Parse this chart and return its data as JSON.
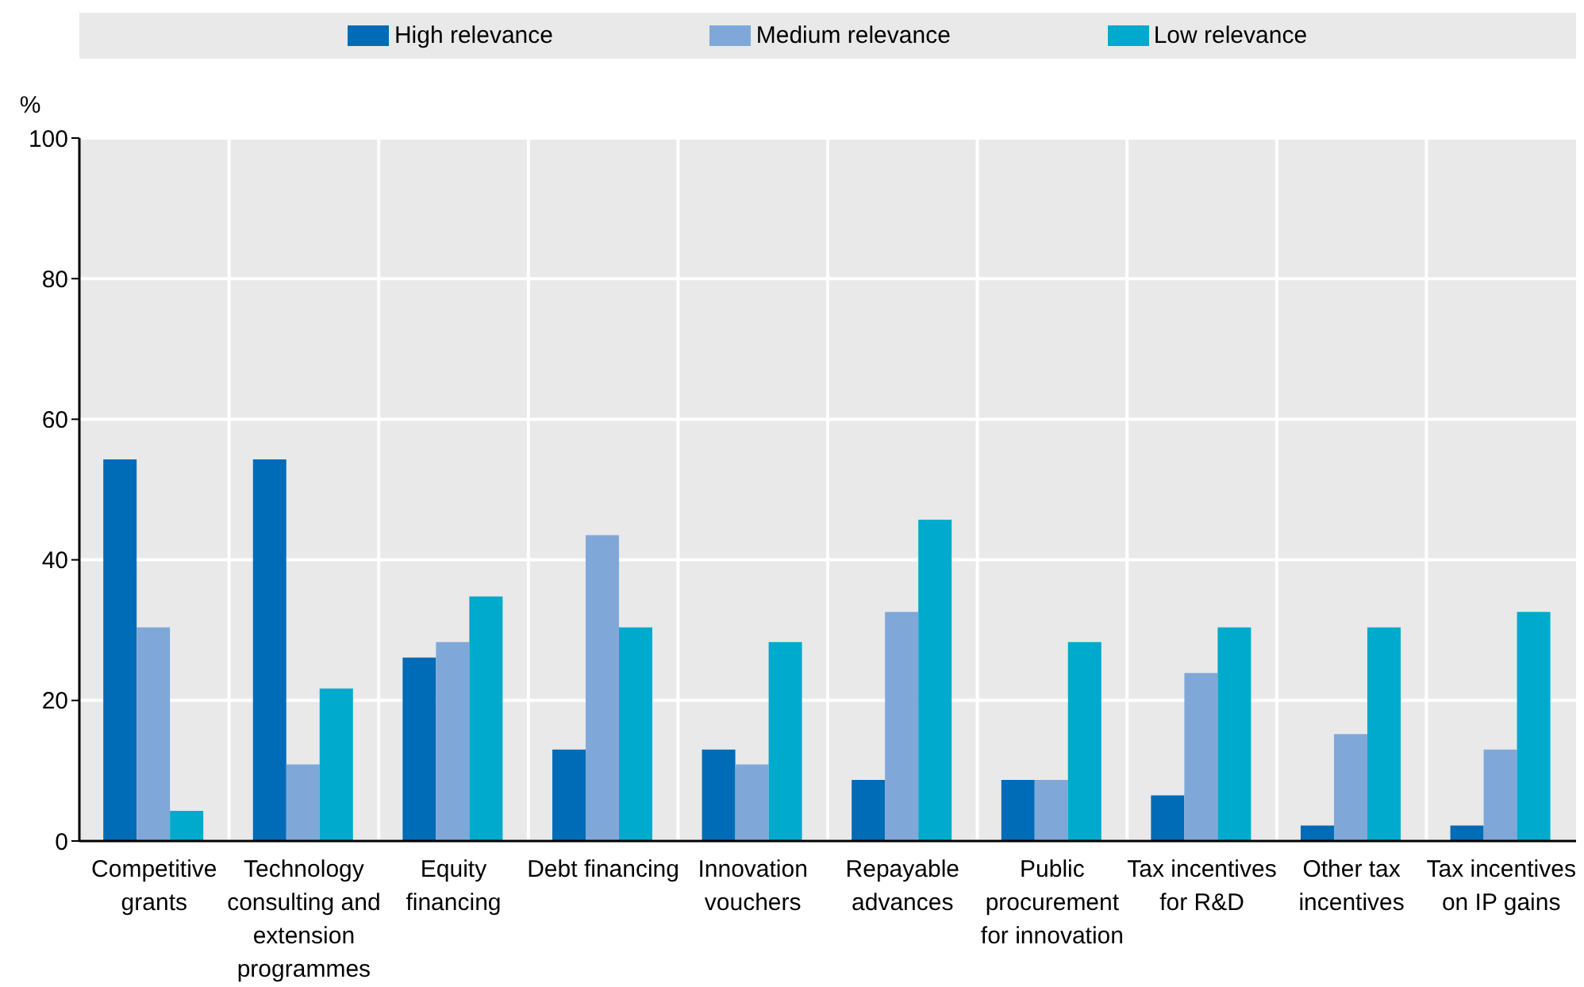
{
  "chart_data": {
    "type": "bar",
    "ylabel": "%",
    "categories": [
      "Competitive grants",
      "Technology consulting and extension programmes",
      "Equity financing",
      "Debt financing",
      "Innovation vouchers",
      "Repayable advances",
      "Public procurement for innovation",
      "Tax incentives for R&D",
      "Other tax incentives",
      "Tax incentives on IP gains"
    ],
    "series": [
      {
        "name": "High relevance",
        "color": "#006bb6",
        "values": [
          54.3,
          54.3,
          26.1,
          13.0,
          13.0,
          8.7,
          8.7,
          6.5,
          2.2,
          2.2
        ]
      },
      {
        "name": "Medium relevance",
        "color": "#7fa8d9",
        "values": [
          30.4,
          10.9,
          28.3,
          43.5,
          10.9,
          32.6,
          8.7,
          23.9,
          15.2,
          13.0
        ]
      },
      {
        "name": "Low relevance",
        "color": "#00aacc",
        "values": [
          4.3,
          21.7,
          34.8,
          30.4,
          28.3,
          45.7,
          28.3,
          30.4,
          30.4,
          32.6
        ]
      }
    ],
    "ylim": [
      0,
      100
    ],
    "yticks": [
      0,
      20,
      40,
      60,
      80,
      100
    ],
    "grid": true,
    "legend": "top"
  }
}
